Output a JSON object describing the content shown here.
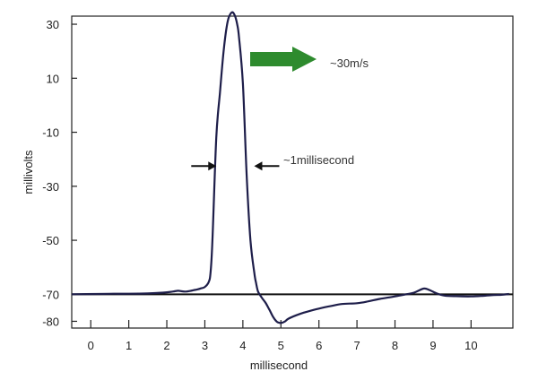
{
  "chart_data": {
    "type": "line",
    "title": "",
    "xlabel": "millisecond",
    "ylabel": "millivolts",
    "xlim": [
      -0.5,
      11.1
    ],
    "ylim": [
      -82.5,
      33.0
    ],
    "x_ticks": [
      0,
      1,
      2,
      3,
      4,
      5,
      6,
      7,
      8,
      9,
      10
    ],
    "y_tick_labels": [
      "30",
      "10",
      "-10",
      "-30",
      "-50",
      "-70",
      "-80"
    ],
    "grid": false,
    "resting_line": -70,
    "series": [
      {
        "x": [
          -0.5,
          0.2,
          0.6,
          1.0,
          1.5,
          1.9,
          2.1,
          2.2,
          2.3,
          2.4,
          2.5,
          2.6,
          2.7,
          2.8,
          2.9,
          3.0,
          3.1,
          3.15,
          3.2,
          3.3,
          3.4,
          3.5,
          3.6,
          3.7,
          3.78,
          3.85,
          3.9,
          4.0,
          4.1,
          4.2,
          4.3,
          4.35,
          4.4,
          4.5,
          4.6,
          4.7,
          4.8,
          4.9,
          5.0,
          5.1,
          5.2,
          5.4,
          5.6,
          5.8,
          6.0,
          6.3,
          6.6,
          7.0,
          7.3,
          7.6,
          8.0,
          8.3,
          8.5,
          8.75,
          8.9,
          9.1,
          9.3,
          9.6,
          10.0,
          10.3,
          10.6,
          10.8,
          11.0
        ],
        "y": [
          -70.0,
          -69.9,
          -69.8,
          -69.8,
          -69.7,
          -69.4,
          -69.1,
          -68.9,
          -68.7,
          -68.9,
          -69.0,
          -68.8,
          -68.5,
          -68.2,
          -67.8,
          -67.3,
          -65.5,
          -62.0,
          -50.0,
          -12.0,
          5.0,
          21.0,
          31.0,
          34.3,
          33.5,
          30.0,
          25.0,
          8.0,
          -26.0,
          -50.0,
          -62.0,
          -66.0,
          -69.0,
          -71.3,
          -73.2,
          -75.8,
          -78.5,
          -80.2,
          -80.6,
          -80.1,
          -79.0,
          -77.8,
          -76.8,
          -76.0,
          -75.3,
          -74.4,
          -73.6,
          -73.3,
          -72.6,
          -71.7,
          -70.8,
          -70.0,
          -69.4,
          -67.9,
          -68.4,
          -69.7,
          -70.5,
          -70.7,
          -70.8,
          -70.6,
          -70.3,
          -70.2,
          -69.9
        ]
      }
    ],
    "annotations": [
      {
        "text": "~30m/s",
        "type": "arrow-right",
        "color": "#2e8b2e"
      },
      {
        "text": "~1millisecond",
        "type": "width-arrows",
        "from_x": 3.35,
        "to_x": 4.25,
        "at_y": -22.5
      }
    ]
  },
  "colors": {
    "curve": "#1e1e4a",
    "axis": "#222222",
    "arrow_green": "#2e8b2e"
  }
}
